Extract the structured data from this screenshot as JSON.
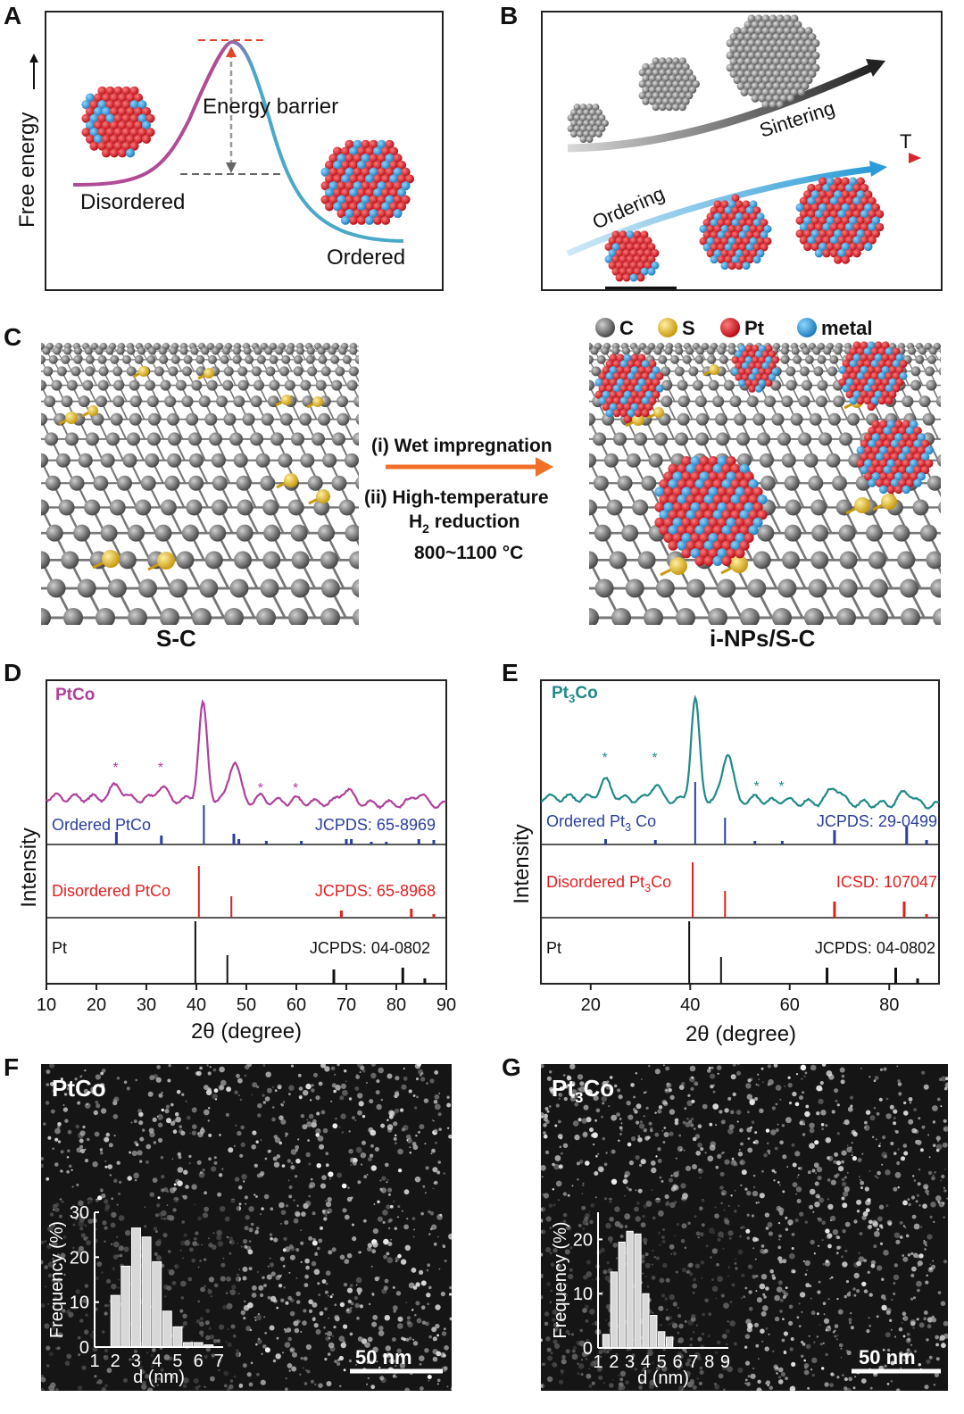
{
  "panels": {
    "A": {
      "label": "A",
      "y_axis_label": "Free energy",
      "barrier_label": "Energy barrier",
      "disordered_label": "Disordered",
      "ordered_label": "Ordered"
    },
    "B": {
      "label": "B",
      "sintering_label": "Sintering",
      "temperature_label": "T",
      "ordering_label": "Ordering"
    },
    "C": {
      "label": "C",
      "legend": [
        {
          "symbol": "C",
          "color": "#7b7b7b"
        },
        {
          "symbol": "S",
          "color": "#e5b92c"
        },
        {
          "symbol": "Pt",
          "color": "#d9252b"
        },
        {
          "symbol": "metal",
          "color": "#3aa4dd"
        }
      ],
      "step1": "(i) Wet impregnation",
      "step2": "(ii) High-temperature",
      "step3_pre": "H",
      "step3_sub": "2",
      "step3_post": " reduction",
      "step4": "800~1100 °C",
      "left_caption": "S-C",
      "right_caption": "i-NPs/S-C"
    },
    "D": {
      "label": "D",
      "sample": "PtCo",
      "ylabel": "Intensity",
      "xlabel": "2θ (degree)",
      "ordered_label": "Ordered PtCo",
      "ordered_ref": "JCPDS: 65-8969",
      "disordered_label": "Disordered PtCo",
      "disordered_ref": "JCPDS: 65-8968",
      "pt_label": "Pt",
      "pt_ref": "JCPDS: 04-0802"
    },
    "E": {
      "label": "E",
      "sample_pre": "Pt",
      "sample_sub": "3",
      "sample_post": "Co",
      "ylabel": "Intensity",
      "xlabel": "2θ (degree)",
      "ordered_pre": "Ordered Pt",
      "ordered_sub": "3",
      "ordered_post": " Co",
      "ordered_ref": "JCPDS: 29-0499",
      "disordered_pre": "Disordered Pt",
      "disordered_sub": "3",
      "disordered_post": "Co",
      "disordered_ref": "ICSD: 107047",
      "pt_label": "Pt",
      "pt_ref": "JCPDS: 04-0802"
    },
    "F": {
      "label": "F",
      "sample": "PtCo",
      "scale_bar": "50 nm",
      "hist_ylabel": "Frequency (%)",
      "hist_xlabel": "d (nm)"
    },
    "G": {
      "label": "G",
      "sample_pre": "Pt",
      "sample_sub": "3",
      "sample_post": "Co",
      "scale_bar": "50 nm",
      "hist_ylabel": "Frequency (%)",
      "hist_xlabel": "d (nm)"
    }
  },
  "chart_data": [
    {
      "type": "line",
      "panel": "D",
      "xlim": [
        10,
        90
      ],
      "xticks": [
        10,
        20,
        30,
        40,
        50,
        60,
        70,
        80,
        90
      ],
      "series_color": "#b0409c",
      "peaks_marked": [
        24,
        33,
        53,
        60
      ],
      "main_peaks": [
        41.3,
        47.5,
        70,
        84.5
      ],
      "reference_lines": {
        "ordered": {
          "color": "#2a3f9e",
          "positions": [
            24,
            33,
            41.5,
            47.5,
            48.5,
            54,
            61,
            70,
            71,
            75,
            78,
            84.5,
            87.5
          ]
        },
        "disordered": {
          "color": "#e02020",
          "positions": [
            40.5,
            47,
            69,
            83,
            87.5
          ]
        },
        "pt": {
          "color": "#111111",
          "positions": [
            39.8,
            46.2,
            67.5,
            81.3,
            85.7
          ]
        }
      }
    },
    {
      "type": "line",
      "panel": "E",
      "xlim": [
        10,
        90
      ],
      "xticks": [
        20,
        40,
        60,
        80
      ],
      "series_color": "#1f8a87",
      "peaks_marked": [
        23,
        33,
        53.5,
        58.5
      ],
      "main_peaks": [
        41,
        47.5,
        69,
        83.5
      ],
      "reference_lines": {
        "ordered": {
          "color": "#2a3f9e",
          "positions": [
            23,
            33,
            41,
            47,
            53,
            58.5,
            69,
            83.5,
            87.5
          ]
        },
        "disordered": {
          "color": "#e02020",
          "positions": [
            40.5,
            47,
            69,
            83,
            87.5
          ]
        },
        "pt": {
          "color": "#111111",
          "positions": [
            39.8,
            46.2,
            67.5,
            81.3,
            85.7
          ]
        }
      }
    },
    {
      "type": "bar",
      "panel": "F",
      "categories": [
        "1",
        "2",
        "3",
        "4",
        "5",
        "6",
        "7"
      ],
      "x": [
        2,
        2.5,
        3,
        3.5,
        4,
        4.5,
        5,
        5.5,
        6,
        6.5
      ],
      "values": [
        11.5,
        18,
        26.5,
        24.5,
        19,
        8,
        4.5,
        1,
        1,
        0.5
      ],
      "ylim": [
        0,
        30
      ],
      "yticks": [
        0,
        10,
        20,
        30
      ],
      "xlabel": "d (nm)",
      "ylabel": "Frequency (%)"
    },
    {
      "type": "bar",
      "panel": "G",
      "categories": [
        "1",
        "2",
        "3",
        "4",
        "5",
        "6",
        "7",
        "8",
        "9"
      ],
      "x": [
        1.5,
        2,
        2.5,
        3,
        3.5,
        4,
        4.5,
        5,
        5.5,
        6,
        6.5
      ],
      "values": [
        2.5,
        14,
        19.5,
        21.5,
        21,
        10,
        6,
        3,
        2,
        0,
        0
      ],
      "ylim": [
        0,
        25
      ],
      "yticks": [
        0,
        10,
        20
      ],
      "xlabel": "d (nm)",
      "ylabel": "Frequency (%)"
    }
  ]
}
